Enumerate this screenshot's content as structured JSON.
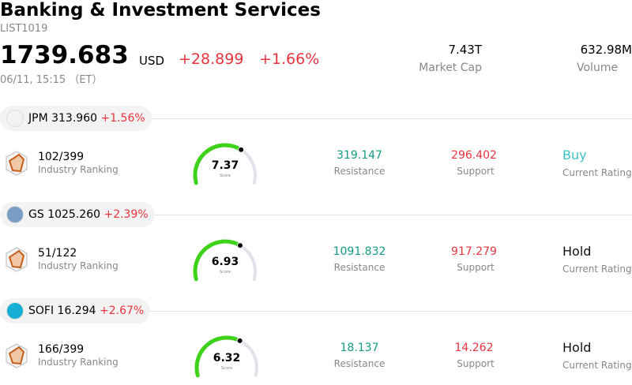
{
  "header": {
    "title": "Banking & Investment Services",
    "code": "LIST1019",
    "price": "1739.683",
    "currency": "USD",
    "change": "+28.899",
    "change_pct": "+1.66%",
    "datetime": "06/11, 15:15 （ET）",
    "stats": [
      {
        "value": "7.43T",
        "label": "Market Cap"
      },
      {
        "value": "632.98M",
        "label": "Volume"
      }
    ]
  },
  "stocks": [
    {
      "ticker": "JPM",
      "price": "313.960",
      "change_pct": "+1.56%",
      "ranking": "102/399",
      "ranking_label": "Industry Ranking",
      "score": "7.37",
      "score_label": "Score",
      "resistance": "319.147",
      "resistance_label": "Resistance",
      "support": "296.402",
      "support_label": "Support",
      "rating": "Buy",
      "rating_color": "#3cc4c4",
      "rating_label": "Current Rating"
    },
    {
      "ticker": "GS",
      "price": "1025.260",
      "change_pct": "+2.39%",
      "ranking": "51/122",
      "ranking_label": "Industry Ranking",
      "score": "6.93",
      "score_label": "Score",
      "resistance": "1091.832",
      "resistance_label": "Resistance",
      "support": "917.279",
      "support_label": "Support",
      "rating": "Hold",
      "rating_color": "#111111",
      "rating_label": "Current Rating"
    },
    {
      "ticker": "SOFI",
      "price": "16.294",
      "change_pct": "+2.67%",
      "ranking": "166/399",
      "ranking_label": "Industry Ranking",
      "score": "6.32",
      "score_label": "Score",
      "resistance": "18.137",
      "resistance_label": "Resistance",
      "support": "14.262",
      "support_label": "Support",
      "rating": "Hold",
      "rating_color": "#111111",
      "rating_label": "Current Rating"
    }
  ]
}
